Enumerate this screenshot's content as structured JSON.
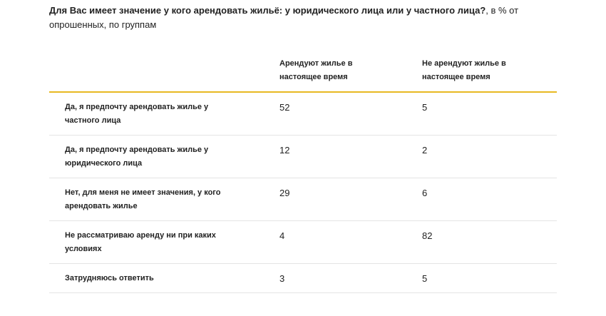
{
  "header": {
    "title": "Для Вас имеет значение у кого арендовать жильё: у юридического лица или у частного лица?",
    "subtitle": ", в % от опрошенных, по группам"
  },
  "table": {
    "columns": [
      "Арендуют жилье в настоящее время",
      "Не арендуют жилье в настоящее время"
    ],
    "rows": [
      {
        "label": "Да, я предпочту арендовать жилье у частного лица",
        "renting": "52",
        "not_renting": "5"
      },
      {
        "label": "Да, я предпочту арендовать жилье у юридического лица",
        "renting": "12",
        "not_renting": "2"
      },
      {
        "label": "Нет, для меня не имеет значения, у кого арендовать жилье",
        "renting": "29",
        "not_renting": "6"
      },
      {
        "label": "Не рассматриваю аренду ни при каких условиях",
        "renting": "4",
        "not_renting": "82"
      },
      {
        "label": "Затрудняюсь ответить",
        "renting": "3",
        "not_renting": "5"
      }
    ]
  },
  "colors": {
    "accent_line": "#e8b922",
    "row_divider": "#e4e4e4",
    "text": "#222222"
  }
}
